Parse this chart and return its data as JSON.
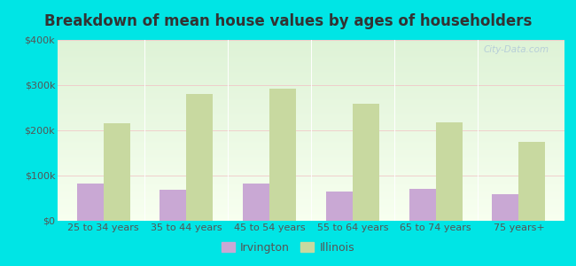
{
  "title": "Breakdown of mean house values by ages of householders",
  "categories": [
    "25 to 34 years",
    "35 to 44 years",
    "45 to 54 years",
    "55 to 64 years",
    "65 to 74 years",
    "75 years+"
  ],
  "irvington_values": [
    82000,
    68000,
    83000,
    65000,
    70000,
    58000
  ],
  "illinois_values": [
    215000,
    280000,
    293000,
    258000,
    218000,
    175000
  ],
  "irvington_color": "#c9a8d4",
  "illinois_color": "#c8d9a0",
  "ylim": [
    0,
    400000
  ],
  "yticks": [
    0,
    100000,
    200000,
    300000,
    400000
  ],
  "ytick_labels": [
    "$0",
    "$100k",
    "$200k",
    "$300k",
    "$400k"
  ],
  "background_color": "#00e5e5",
  "bar_width": 0.32,
  "legend_labels": [
    "Irvington",
    "Illinois"
  ],
  "watermark": "City-Data.com",
  "title_fontsize": 12,
  "tick_fontsize": 8,
  "legend_fontsize": 9,
  "title_color": "#333333",
  "tick_color": "#555555"
}
